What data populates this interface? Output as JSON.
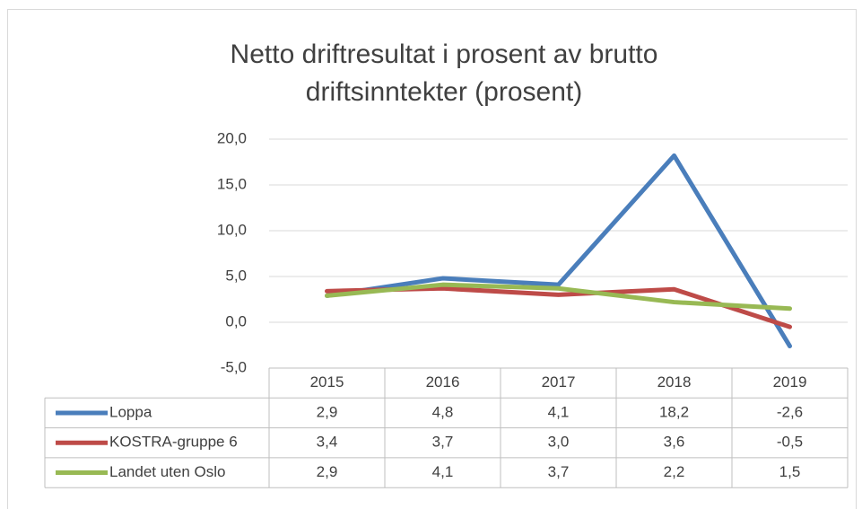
{
  "chart_data": {
    "type": "line",
    "title": "Netto driftresultat i prosent av brutto driftsinntekter (prosent)",
    "categories": [
      "2015",
      "2016",
      "2017",
      "2018",
      "2019"
    ],
    "series": [
      {
        "name": "Loppa",
        "color": "#4a7ebb",
        "values": [
          2.9,
          4.8,
          4.1,
          18.2,
          -2.6
        ],
        "value_labels": [
          "2,9",
          "4,8",
          "4,1",
          "18,2",
          "-2,6"
        ]
      },
      {
        "name": "KOSTRA-gruppe 6",
        "color": "#be4b48",
        "values": [
          3.4,
          3.7,
          3.0,
          3.6,
          -0.5
        ],
        "value_labels": [
          "3,4",
          "3,7",
          "3,0",
          "3,6",
          "-0,5"
        ]
      },
      {
        "name": "Landet uten Oslo",
        "color": "#98b954",
        "values": [
          2.9,
          4.1,
          3.7,
          2.2,
          1.5
        ],
        "value_labels": [
          "2,9",
          "4,1",
          "3,7",
          "2,2",
          "1,5"
        ]
      }
    ],
    "ylim": [
      -5,
      20
    ],
    "yticks": [
      {
        "value": -5,
        "label": "-5,0"
      },
      {
        "value": 0,
        "label": "0,0"
      },
      {
        "value": 5,
        "label": "5,0"
      },
      {
        "value": 10,
        "label": "10,0"
      },
      {
        "value": 15,
        "label": "15,0"
      },
      {
        "value": 20,
        "label": "20,0"
      }
    ],
    "grid": true
  }
}
